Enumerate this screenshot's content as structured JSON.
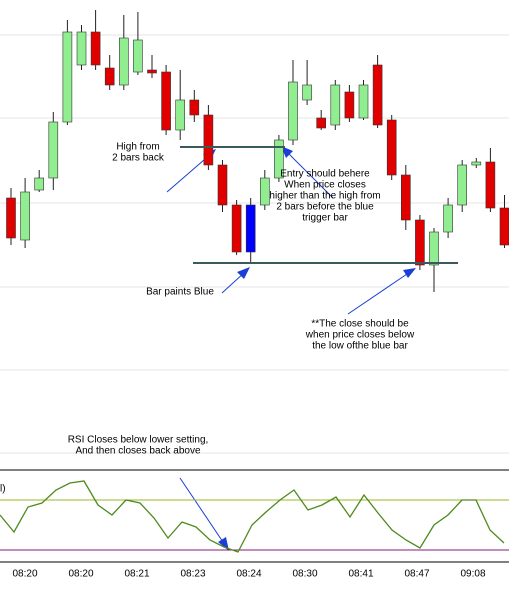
{
  "chart_data": {
    "type": "candlestick",
    "ylim": [
      0,
      470
    ],
    "candles": [
      {
        "open": 272,
        "close": 232,
        "high": 282,
        "low": 225,
        "color": "#e00000"
      },
      {
        "open": 230,
        "close": 278,
        "high": 292,
        "low": 222,
        "color": "#90ee90"
      },
      {
        "open": 280,
        "close": 292,
        "high": 300,
        "low": 278,
        "color": "#90ee90"
      },
      {
        "open": 292,
        "close": 348,
        "high": 358,
        "low": 280,
        "color": "#90ee90"
      },
      {
        "open": 348,
        "close": 438,
        "high": 450,
        "low": 345,
        "color": "#90ee90"
      },
      {
        "open": 405,
        "close": 438,
        "high": 445,
        "low": 400,
        "color": "#90ee90"
      },
      {
        "open": 438,
        "close": 405,
        "high": 460,
        "low": 400,
        "color": "#e00000"
      },
      {
        "open": 402,
        "close": 385,
        "high": 415,
        "low": 380,
        "color": "#e00000"
      },
      {
        "open": 385,
        "close": 432,
        "high": 455,
        "low": 380,
        "color": "#90ee90"
      },
      {
        "open": 398,
        "close": 430,
        "high": 458,
        "low": 395,
        "color": "#90ee90"
      },
      {
        "open": 400,
        "close": 397,
        "high": 415,
        "low": 392,
        "color": "#e00000"
      },
      {
        "open": 398,
        "close": 340,
        "high": 405,
        "low": 335,
        "color": "#e00000"
      },
      {
        "open": 340,
        "close": 370,
        "high": 400,
        "low": 330,
        "color": "#90ee90"
      },
      {
        "open": 370,
        "close": 355,
        "high": 380,
        "low": 348,
        "color": "#e00000"
      },
      {
        "open": 355,
        "close": 305,
        "high": 365,
        "low": 300,
        "color": "#e00000"
      },
      {
        "open": 305,
        "close": 265,
        "high": 310,
        "low": 258,
        "color": "#e00000"
      },
      {
        "open": 265,
        "close": 218,
        "high": 270,
        "low": 215,
        "color": "#e00000"
      },
      {
        "open": 265,
        "close": 218,
        "high": 272,
        "low": 208,
        "color": "#0000ff"
      },
      {
        "open": 265,
        "close": 292,
        "high": 300,
        "low": 260,
        "color": "#90ee90"
      },
      {
        "open": 292,
        "close": 330,
        "high": 335,
        "low": 288,
        "color": "#90ee90"
      },
      {
        "open": 330,
        "close": 388,
        "high": 410,
        "low": 325,
        "color": "#90ee90"
      },
      {
        "open": 370,
        "close": 385,
        "high": 410,
        "low": 365,
        "color": "#90ee90"
      },
      {
        "open": 352,
        "close": 342,
        "high": 360,
        "low": 340,
        "color": "#e00000"
      },
      {
        "open": 345,
        "close": 385,
        "high": 390,
        "low": 340,
        "color": "#90ee90"
      },
      {
        "open": 378,
        "close": 352,
        "high": 385,
        "low": 348,
        "color": "#e00000"
      },
      {
        "open": 352,
        "close": 385,
        "high": 390,
        "low": 350,
        "color": "#90ee90"
      },
      {
        "open": 405,
        "close": 345,
        "high": 415,
        "low": 342,
        "color": "#e00000"
      },
      {
        "open": 350,
        "close": 295,
        "high": 355,
        "low": 290,
        "color": "#e00000"
      },
      {
        "open": 295,
        "close": 250,
        "high": 305,
        "low": 240,
        "color": "#e00000"
      },
      {
        "open": 250,
        "close": 205,
        "high": 255,
        "low": 200,
        "color": "#e00000"
      },
      {
        "open": 205,
        "close": 238,
        "high": 242,
        "low": 178,
        "color": "#90ee90"
      },
      {
        "open": 238,
        "close": 265,
        "high": 272,
        "low": 232,
        "color": "#90ee90"
      },
      {
        "open": 265,
        "close": 305,
        "high": 310,
        "low": 258,
        "color": "#90ee90"
      },
      {
        "open": 305,
        "close": 308,
        "high": 312,
        "low": 302,
        "color": "#90ee90"
      },
      {
        "open": 308,
        "close": 262,
        "high": 322,
        "low": 258,
        "color": "#e00000"
      },
      {
        "open": 262,
        "close": 225,
        "high": 275,
        "low": 222,
        "color": "#e00000"
      }
    ],
    "levels": [
      {
        "value": 323,
        "color": "#3d5a5a"
      },
      {
        "value": 207,
        "color": "#3d5a5a"
      }
    ],
    "categories": [
      "08:20",
      "08:20",
      "08:21",
      "08:23",
      "08:24",
      "08:30",
      "08:41",
      "08:47",
      "09:08"
    ],
    "rsi": {
      "label": "l)",
      "color": "#4e8a1c",
      "y2lim": [
        22,
        94
      ],
      "values": [
        58,
        44.4,
        64.4,
        67.6,
        78,
        83.6,
        85.2,
        66,
        58,
        70,
        67.6,
        55.6,
        39.6,
        52.4,
        48.4,
        38,
        32.4,
        28.4,
        50,
        60.4,
        70,
        78,
        62,
        66,
        72.4,
        56.4,
        74,
        59.6,
        46,
        38,
        31.6,
        50,
        58,
        70,
        70,
        46,
        35.6
      ],
      "levels": [
        {
          "value": 70,
          "color": "#9ab82a"
        },
        {
          "value": 30,
          "color": "#8a1a7a"
        }
      ]
    },
    "annotations": [
      {
        "lines": [
          "High from",
          "2 bars back"
        ]
      },
      {
        "lines": [
          "Entry should behere",
          "When price closes",
          "higher than the high from",
          "2 bars before the blue",
          "trigger bar"
        ]
      },
      {
        "lines": [
          "Bar paints Blue"
        ]
      },
      {
        "lines": [
          "**The close should be",
          "when price closes below",
          "the low ofthe blue bar"
        ]
      },
      {
        "lines": [
          "RSI Closes below lower setting,",
          "And then closes back above"
        ]
      }
    ]
  }
}
